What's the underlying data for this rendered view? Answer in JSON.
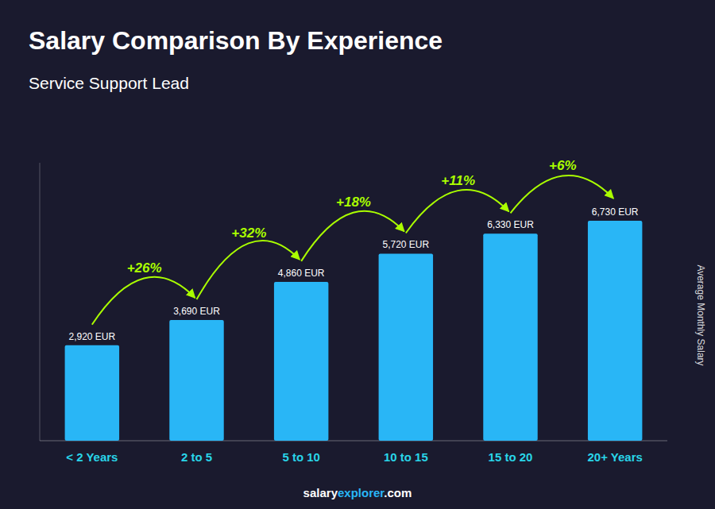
{
  "chart_data": {
    "type": "bar",
    "title": "Salary Comparison By Experience",
    "subtitle": "Service Support Lead",
    "ylabel": "Average Monthly Salary",
    "categories": [
      "< 2 Years",
      "2 to 5",
      "5 to 10",
      "10 to 15",
      "15 to 20",
      "20+ Years"
    ],
    "values": [
      2920,
      3690,
      4860,
      5720,
      6330,
      6730
    ],
    "value_labels": [
      "2,920 EUR",
      "3,690 EUR",
      "4,860 EUR",
      "5,720 EUR",
      "6,330 EUR",
      "6,730 EUR"
    ],
    "data_labels": true,
    "annotations": [
      "+26%",
      "+32%",
      "+18%",
      "+11%",
      "+6%"
    ],
    "footer": [
      "salary",
      "explorer",
      ".com"
    ],
    "color": "#29b6f6",
    "ylim": [
      0,
      8500
    ],
    "tick_labels": false,
    "grid": false
  }
}
